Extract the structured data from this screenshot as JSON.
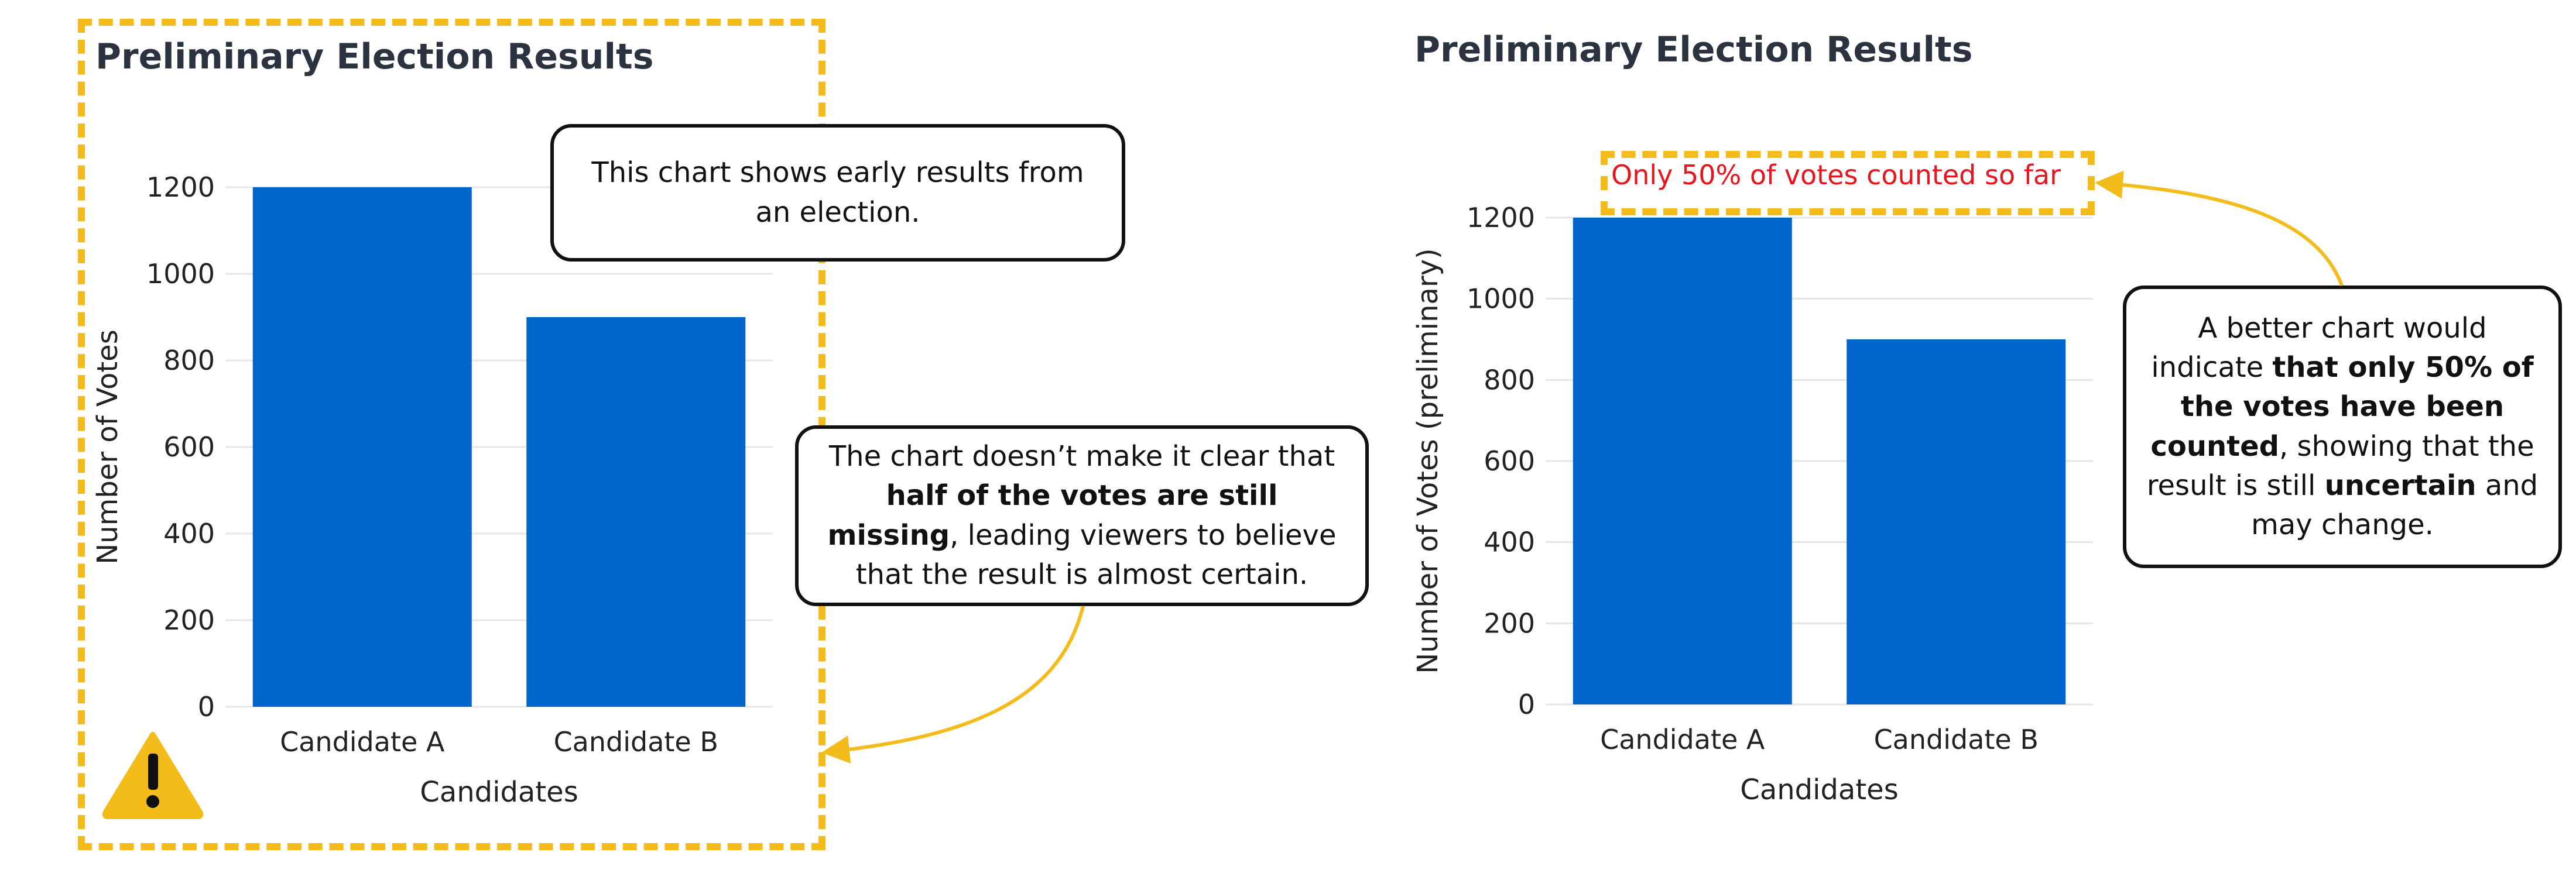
{
  "chart_data": [
    {
      "type": "bar",
      "title": "Preliminary Election Results",
      "categories": [
        "Candidate A",
        "Candidate B"
      ],
      "values": [
        1200,
        900
      ],
      "xlabel": "Candidates",
      "ylabel": "Number of Votes",
      "ylim": [
        0,
        1200
      ],
      "yticks": [
        0,
        200,
        400,
        600,
        800,
        1000,
        1200
      ],
      "grid": true,
      "color": "#0066cc"
    },
    {
      "type": "bar",
      "title": "Preliminary Election Results",
      "categories": [
        "Candidate A",
        "Candidate B"
      ],
      "values": [
        1200,
        900
      ],
      "xlabel": "Candidates",
      "ylabel": "Number of Votes (preliminary)",
      "ylim": [
        0,
        1200
      ],
      "yticks": [
        0,
        200,
        400,
        600,
        800,
        1000,
        1200
      ],
      "grid": true,
      "color": "#0066cc",
      "annotation": "Only 50% of votes counted so far"
    }
  ],
  "callouts": {
    "intro": "This chart shows early results from an election.",
    "problem": {
      "before": "The chart doesn’t make it clear that ",
      "bold": "half of the votes are still missing",
      "after": ", leading viewers to believe that the result is almost certain."
    },
    "better": {
      "part1": "A better chart would indicate ",
      "bold1": "that only 50% of the votes have been counted",
      "part2": ", showing that the result is still ",
      "bold2": "uncertain",
      "part3": " and may change."
    }
  },
  "icons": {
    "warning": "warning-triangle-icon"
  },
  "colors": {
    "highlight": "#f4bc1a",
    "bar": "#0066cc",
    "alert_text": "#e8141c"
  }
}
